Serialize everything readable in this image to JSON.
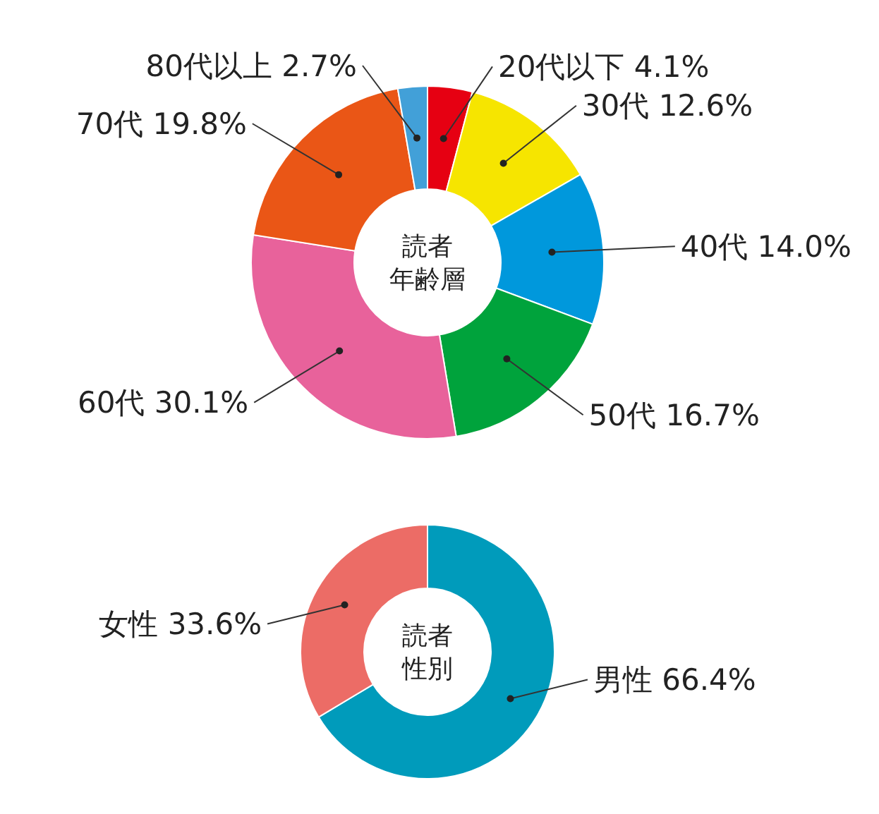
{
  "chart_data": [
    {
      "type": "donut",
      "title": "読者年齢層",
      "categories": [
        "20代以下",
        "30代",
        "40代",
        "50代",
        "60代",
        "70代",
        "80代以上"
      ],
      "values": [
        4.1,
        12.6,
        14.0,
        16.7,
        30.1,
        19.8,
        2.7
      ],
      "value_labels": [
        "4.1%",
        "12.6%",
        "14.0%",
        "16.7%",
        "30.1%",
        "19.8%",
        "2.7%"
      ],
      "colors": [
        "#e60012",
        "#f6e500",
        "#0098dc",
        "#00a33c",
        "#e8629b",
        "#ea5616",
        "#42a0d8"
      ]
    },
    {
      "type": "donut",
      "title": "読者性別",
      "categories": [
        "男性",
        "女性"
      ],
      "values": [
        66.4,
        33.6
      ],
      "value_labels": [
        "66.4%",
        "33.6%"
      ],
      "colors": [
        "#009bbb",
        "#ec6c66"
      ]
    }
  ]
}
